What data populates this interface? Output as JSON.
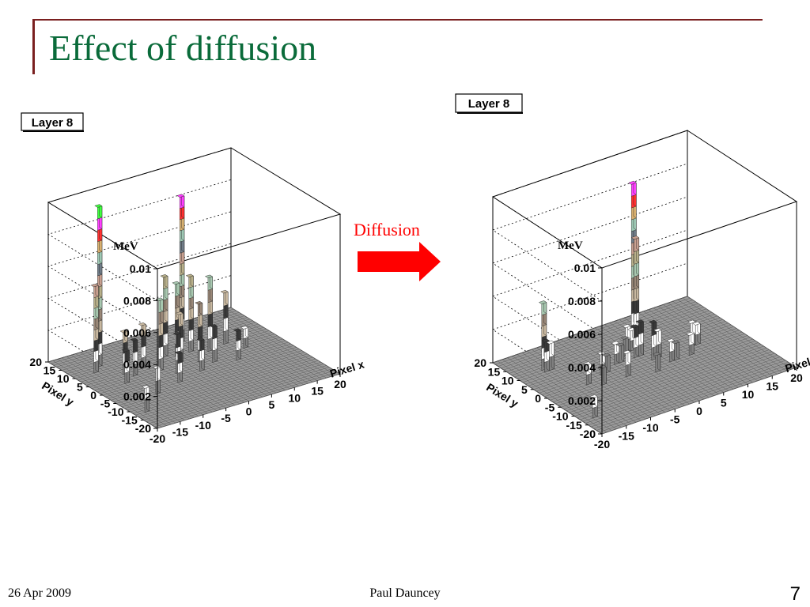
{
  "slide": {
    "title": "Effect of diffusion",
    "arrow_label": "Diffusion",
    "footer_date": "26 Apr 2009",
    "footer_author": "Paul Dauncey",
    "page_number": "7"
  },
  "colors": {
    "title": "#0a6b3a",
    "arrow": "#ff0000",
    "rule": "#7a1f1f"
  },
  "chart_data": [
    {
      "type": "bar3d",
      "title": "Layer 8",
      "zlabel": "MeV",
      "xlabel": "Pixel x",
      "ylabel": "Pixel y",
      "xlim": [
        -20,
        20
      ],
      "ylim": [
        -20,
        20
      ],
      "zlim": [
        0,
        0.01
      ],
      "z_ticks": [
        "0",
        "0.002",
        "0.004",
        "0.006",
        "0.008",
        "0.01"
      ],
      "x_ticks": [
        "-20",
        "-15",
        "-10",
        "-5",
        "0",
        "5",
        "10",
        "15",
        "20"
      ],
      "y_ticks": [
        "-20",
        "-15",
        "-10",
        "-5",
        "0",
        "5",
        "10",
        "15",
        "20"
      ],
      "bars": [
        {
          "x": -14,
          "y": 12,
          "z": 0.01
        },
        {
          "x": 4,
          "y": 12,
          "z": 0.0091
        },
        {
          "x": -16,
          "y": 10,
          "z": 0.0054
        },
        {
          "x": -2,
          "y": 8,
          "z": 0.005
        },
        {
          "x": 0,
          "y": 7,
          "z": 0.0045
        },
        {
          "x": 3,
          "y": 7,
          "z": 0.0047
        },
        {
          "x": 6,
          "y": 5,
          "z": 0.0046
        },
        {
          "x": -6,
          "y": 3,
          "z": 0.0044
        },
        {
          "x": 10,
          "y": 6,
          "z": 0.0032
        },
        {
          "x": -1,
          "y": 4,
          "z": 0.003
        },
        {
          "x": 2,
          "y": 2,
          "z": 0.0036
        },
        {
          "x": -8,
          "y": 6,
          "z": 0.0027
        },
        {
          "x": -12,
          "y": 6,
          "z": 0.0026
        },
        {
          "x": -11,
          "y": 4,
          "z": 0.0022
        },
        {
          "x": -14,
          "y": 2,
          "z": 0.002
        },
        {
          "x": -4,
          "y": 0,
          "z": 0.0024
        },
        {
          "x": 4,
          "y": 0,
          "z": 0.0022
        },
        {
          "x": 8,
          "y": -2,
          "z": 0.0018
        },
        {
          "x": 12,
          "y": 2,
          "z": 0.0012
        },
        {
          "x": -12,
          "y": -6,
          "z": 0.0016
        },
        {
          "x": -6,
          "y": -4,
          "z": 0.0018
        },
        {
          "x": 0,
          "y": -2,
          "z": 0.0019
        },
        {
          "x": -18,
          "y": -12,
          "z": 0.0015
        }
      ]
    },
    {
      "type": "bar3d",
      "title": "Layer 8",
      "zlabel": "MeV",
      "xlabel": "Pixel x",
      "ylabel": "Pixel y",
      "xlim": [
        -20,
        20
      ],
      "ylim": [
        -20,
        20
      ],
      "zlim": [
        0,
        0.01
      ],
      "z_ticks": [
        "0",
        "0.002",
        "0.004",
        "0.006",
        "0.008",
        "0.01"
      ],
      "x_ticks": [
        "-20",
        "-15",
        "-10",
        "-5",
        "0",
        "5",
        "10",
        "15",
        "20"
      ],
      "y_ticks": [
        "-20",
        "-15",
        "-10",
        "-5",
        "0",
        "5",
        "10",
        "15",
        "20"
      ],
      "bars": [
        {
          "x": 4,
          "y": 12,
          "z": 0.0092
        },
        {
          "x": 4,
          "y": 11,
          "z": 0.006
        },
        {
          "x": -15,
          "y": 11,
          "z": 0.004
        },
        {
          "x": -15,
          "y": 10,
          "z": 0.0018
        },
        {
          "x": -14,
          "y": 10,
          "z": 0.0016
        },
        {
          "x": 0,
          "y": 7,
          "z": 0.0015
        },
        {
          "x": 1,
          "y": 7,
          "z": 0.0012
        },
        {
          "x": -1,
          "y": 6,
          "z": 0.001
        },
        {
          "x": 0,
          "y": 4,
          "z": 0.0018
        },
        {
          "x": 1,
          "y": 4,
          "z": 0.002
        },
        {
          "x": -4,
          "y": 4,
          "z": 0.0012
        },
        {
          "x": -3,
          "y": 4,
          "z": 0.001
        },
        {
          "x": -8,
          "y": 2,
          "z": 0.0012
        },
        {
          "x": -7,
          "y": 2,
          "z": 0.001
        },
        {
          "x": 2,
          "y": 1,
          "z": 0.0022
        },
        {
          "x": 3,
          "y": 1,
          "z": 0.0016
        },
        {
          "x": 10,
          "y": 1,
          "z": 0.0014
        },
        {
          "x": 11,
          "y": 1,
          "z": 0.0012
        },
        {
          "x": -12,
          "y": 0,
          "z": 0.0012
        },
        {
          "x": -10,
          "y": -2,
          "z": 0.001
        },
        {
          "x": -5,
          "y": -2,
          "z": 0.0014
        },
        {
          "x": 4,
          "y": -2,
          "z": 0.0012
        },
        {
          "x": 5,
          "y": -2,
          "z": 0.001
        },
        {
          "x": 0,
          "y": -4,
          "z": 0.001
        },
        {
          "x": 8,
          "y": -2,
          "z": 0.0012
        },
        {
          "x": -18,
          "y": -13,
          "z": 0.0012
        }
      ]
    }
  ]
}
